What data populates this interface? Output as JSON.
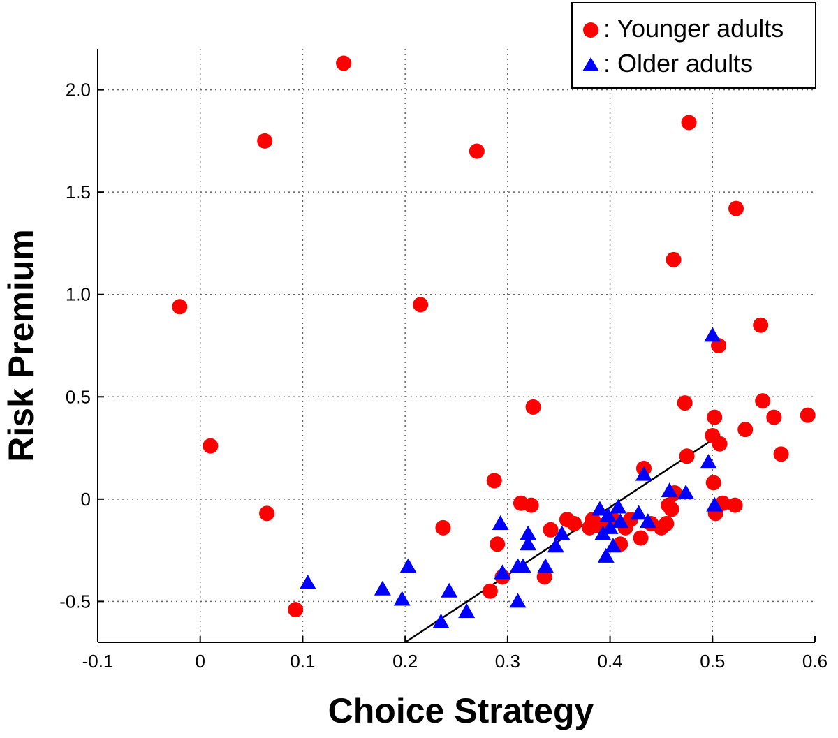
{
  "chart_data": {
    "type": "scatter",
    "title": "",
    "xlabel": "Choice Strategy",
    "ylabel": "Risk Premium",
    "xlim": [
      -0.1,
      0.6
    ],
    "ylim": [
      -0.7,
      2.2
    ],
    "xticks": [
      -0.1,
      0,
      0.1,
      0.2,
      0.3,
      0.4,
      0.5,
      0.6
    ],
    "xtick_labels": [
      "-0.1",
      "0",
      "0.1",
      "0.2",
      "0.3",
      "0.4",
      "0.5",
      "0.6"
    ],
    "yticks": [
      -0.5,
      0,
      0.5,
      1.0,
      1.5,
      2.0
    ],
    "ytick_labels": [
      "-0.5",
      "0",
      "0.5",
      "1.0",
      "1.5",
      "2.0"
    ],
    "grid": true,
    "legend_position": "top-right",
    "series": [
      {
        "name": ": Younger adults",
        "marker": "circle",
        "color": "#ff0000",
        "points": [
          [
            -0.02,
            0.94
          ],
          [
            0.01,
            0.26
          ],
          [
            0.063,
            1.75
          ],
          [
            0.065,
            -0.07
          ],
          [
            0.093,
            -0.54
          ],
          [
            0.14,
            2.13
          ],
          [
            0.215,
            0.95
          ],
          [
            0.237,
            -0.14
          ],
          [
            0.27,
            1.7
          ],
          [
            0.283,
            -0.45
          ],
          [
            0.287,
            0.09
          ],
          [
            0.29,
            -0.22
          ],
          [
            0.295,
            -0.38
          ],
          [
            0.313,
            -0.02
          ],
          [
            0.323,
            -0.03
          ],
          [
            0.325,
            0.45
          ],
          [
            0.336,
            -0.38
          ],
          [
            0.342,
            -0.15
          ],
          [
            0.358,
            -0.1
          ],
          [
            0.365,
            -0.12
          ],
          [
            0.38,
            -0.14
          ],
          [
            0.383,
            -0.1
          ],
          [
            0.39,
            -0.13
          ],
          [
            0.403,
            -0.1
          ],
          [
            0.41,
            -0.22
          ],
          [
            0.415,
            -0.14
          ],
          [
            0.42,
            -0.1
          ],
          [
            0.43,
            -0.19
          ],
          [
            0.433,
            0.15
          ],
          [
            0.44,
            -0.12
          ],
          [
            0.45,
            -0.14
          ],
          [
            0.455,
            -0.12
          ],
          [
            0.457,
            -0.03
          ],
          [
            0.46,
            -0.05
          ],
          [
            0.462,
            1.17
          ],
          [
            0.463,
            0.03
          ],
          [
            0.473,
            0.47
          ],
          [
            0.475,
            0.21
          ],
          [
            0.477,
            1.84
          ],
          [
            0.5,
            0.31
          ],
          [
            0.501,
            0.08
          ],
          [
            0.502,
            0.4
          ],
          [
            0.503,
            -0.07
          ],
          [
            0.506,
            0.75
          ],
          [
            0.507,
            0.27
          ],
          [
            0.51,
            -0.02
          ],
          [
            0.522,
            -0.03
          ],
          [
            0.523,
            1.42
          ],
          [
            0.532,
            0.34
          ],
          [
            0.547,
            0.85
          ],
          [
            0.549,
            0.48
          ],
          [
            0.56,
            0.4
          ],
          [
            0.567,
            0.22
          ],
          [
            0.593,
            0.41
          ]
        ]
      },
      {
        "name": ": Older adults",
        "marker": "triangle",
        "color": "#0000ff",
        "points": [
          [
            0.105,
            -0.41
          ],
          [
            0.178,
            -0.44
          ],
          [
            0.197,
            -0.49
          ],
          [
            0.203,
            -0.33
          ],
          [
            0.235,
            -0.6
          ],
          [
            0.243,
            -0.45
          ],
          [
            0.26,
            -0.55
          ],
          [
            0.293,
            -0.12
          ],
          [
            0.295,
            -0.36
          ],
          [
            0.31,
            -0.33
          ],
          [
            0.31,
            -0.5
          ],
          [
            0.315,
            -0.33
          ],
          [
            0.32,
            -0.22
          ],
          [
            0.32,
            -0.17
          ],
          [
            0.337,
            -0.33
          ],
          [
            0.347,
            -0.23
          ],
          [
            0.353,
            -0.17
          ],
          [
            0.39,
            -0.05
          ],
          [
            0.393,
            -0.17
          ],
          [
            0.396,
            -0.28
          ],
          [
            0.398,
            -0.08
          ],
          [
            0.4,
            -0.14
          ],
          [
            0.403,
            -0.23
          ],
          [
            0.408,
            -0.04
          ],
          [
            0.41,
            -0.11
          ],
          [
            0.428,
            -0.07
          ],
          [
            0.433,
            0.12
          ],
          [
            0.437,
            -0.11
          ],
          [
            0.458,
            0.04
          ],
          [
            0.474,
            0.03
          ],
          [
            0.496,
            0.18
          ],
          [
            0.5,
            0.8
          ],
          [
            0.502,
            -0.03
          ]
        ]
      }
    ],
    "fit_line": {
      "x1": 0.2,
      "y1": -0.7,
      "x2": 0.5,
      "y2": 0.29,
      "color": "#000000"
    }
  }
}
